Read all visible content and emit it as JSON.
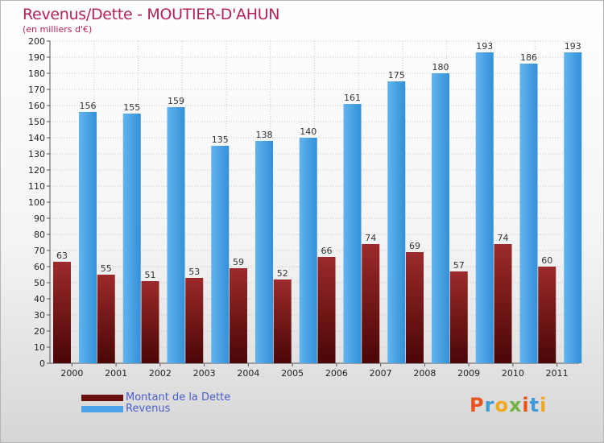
{
  "chart_data": {
    "type": "bar",
    "title": "Revenus/Dette - MOUTIER-D'AHUN",
    "subtitle": "(en milliers d'€)",
    "categories": [
      "2000",
      "2001",
      "2002",
      "2003",
      "2004",
      "2005",
      "2006",
      "2007",
      "2008",
      "2009",
      "2010",
      "2011"
    ],
    "series": [
      {
        "name": "Montant de la Dette",
        "values": [
          63,
          55,
          51,
          53,
          59,
          52,
          66,
          74,
          69,
          57,
          74,
          60
        ],
        "color": "#6b0f0f"
      },
      {
        "name": "Revenus",
        "values": [
          156,
          155,
          159,
          135,
          138,
          140,
          161,
          175,
          180,
          193,
          186,
          193
        ],
        "color": "#4aa3e6"
      }
    ],
    "ylim": [
      0,
      200
    ],
    "yticks": [
      0,
      10,
      20,
      30,
      40,
      50,
      60,
      70,
      80,
      90,
      100,
      110,
      120,
      130,
      140,
      150,
      160,
      170,
      180,
      190,
      200
    ],
    "grid": true,
    "legend_position": "bottom-left"
  },
  "brand": {
    "letters": [
      "P",
      "r",
      "o",
      "x",
      "i",
      "t",
      "i"
    ]
  }
}
